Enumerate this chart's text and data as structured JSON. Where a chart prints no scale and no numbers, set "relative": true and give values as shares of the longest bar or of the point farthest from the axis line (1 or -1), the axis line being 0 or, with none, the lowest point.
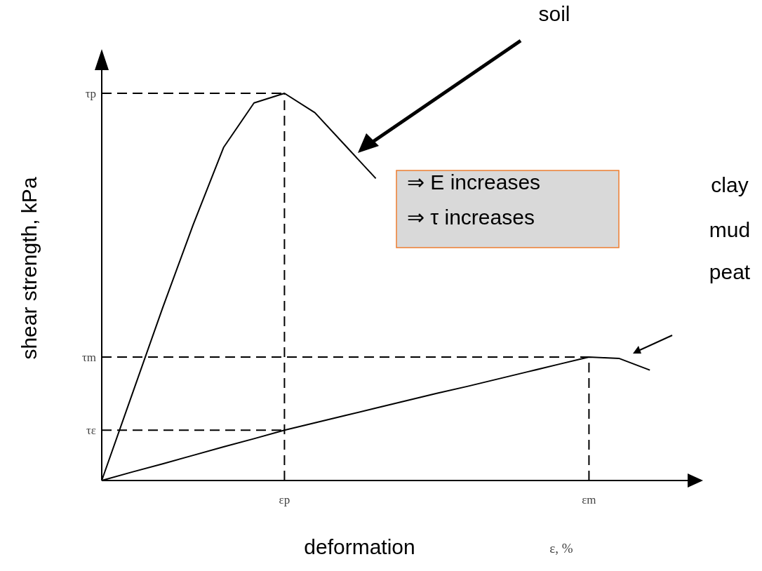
{
  "chart_data": {
    "type": "line",
    "relative": true,
    "xlabel": "deformation",
    "ylabel": "shear strength, kPa",
    "categories": [
      null,
      null,
      null,
      null,
      null,
      null,
      "εp",
      null,
      null,
      null,
      null,
      null,
      null,
      null,
      null,
      null,
      "εm",
      null,
      null
    ],
    "series": [
      {
        "color": "#000000",
        "values": [
          0,
          0.223,
          0.446,
          0.66,
          0.86,
          0.975,
          1,
          0.95,
          0.865,
          0.78,
          null,
          null,
          null,
          null,
          null,
          null,
          null,
          null,
          null
        ]
      },
      {
        "color": "#000000",
        "values": [
          0,
          0.022,
          0.043,
          0.065,
          0.087,
          0.108,
          0.13,
          0.149,
          0.168,
          0.187,
          0.206,
          0.225,
          0.243,
          0.262,
          0.281,
          0.3,
          0.319,
          0.315,
          0.285
        ]
      }
    ],
    "ref_lines": [
      {
        "axis": "y",
        "value": 1,
        "label": "τp",
        "line_style": "dashed"
      },
      {
        "axis": "y",
        "value": 0.319,
        "label": "τm",
        "line_style": "dashed"
      },
      {
        "axis": "y",
        "value": 0.13,
        "label": "τε",
        "line_style": "dashed"
      },
      {
        "axis": "x",
        "value": "εp",
        "line_style": "dashed"
      },
      {
        "axis": "x",
        "value": "εm",
        "line_style": "dashed"
      }
    ],
    "annotations": [
      "soil",
      "⇒ E increases",
      "⇒ τ increases",
      "clay",
      "mud",
      "peat",
      "ε, %"
    ]
  }
}
